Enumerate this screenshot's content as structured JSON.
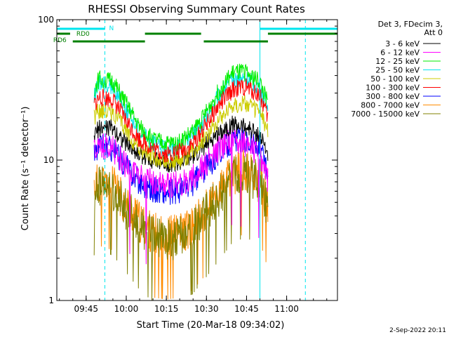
{
  "chart_data": {
    "type": "line",
    "title": "RHESSI Observing Summary Count Rates",
    "xlabel": "Start Time (20-Mar-18 09:34:02)",
    "ylabel": "Count Rate (s⁻¹ detector⁻¹)",
    "ylim": [
      1,
      100
    ],
    "y_scale": "log",
    "xlim": [
      "09:34:02",
      "11:19:00"
    ],
    "x_ticks": [
      "09:45",
      "10:00",
      "10:15",
      "10:30",
      "10:45",
      "11:00"
    ],
    "y_ticks": [
      "1",
      "10",
      "100"
    ],
    "footer_date": "2-Sep-2022 20:11",
    "legend": {
      "placement": "right",
      "header_line1": "Det 3, FDecim 3,",
      "header_line2": "Att 0"
    },
    "flags": [
      {
        "name": "N",
        "color": "#00e5ee",
        "segments": [
          [
            "09:34",
            "09:52"
          ],
          [
            "10:50",
            "11:19"
          ]
        ]
      },
      {
        "name": "RD0",
        "color": "#008000",
        "segments": [
          [
            "09:34",
            "09:39"
          ],
          [
            "10:07",
            "10:28"
          ],
          [
            "10:53",
            "11:19"
          ]
        ]
      },
      {
        "name": "RD6",
        "color": "#008000",
        "segments": [
          [
            "09:40",
            "10:07"
          ],
          [
            "10:29",
            "10:53"
          ]
        ]
      }
    ],
    "vlines": [
      {
        "time": "09:52",
        "color": "#00e5ee",
        "style": "dashed"
      },
      {
        "time": "10:50",
        "color": "#00e5ee",
        "style": "solid"
      },
      {
        "time": "11:07",
        "color": "#00e5ee",
        "style": "dashed"
      }
    ],
    "x": [
      "09:48",
      "09:50",
      "09:55",
      "10:00",
      "10:05",
      "10:10",
      "10:15",
      "10:20",
      "10:25",
      "10:30",
      "10:35",
      "10:40",
      "10:45",
      "10:50",
      "10:53"
    ],
    "series": [
      {
        "name": "3 - 6 keV",
        "color": "#000000",
        "values": [
          15,
          17,
          17,
          13,
          11,
          10,
          9.5,
          9.5,
          10.5,
          13,
          16,
          18,
          17,
          15,
          11
        ]
      },
      {
        "name": "6 - 12 keV",
        "color": "#ff00ff",
        "values": [
          12,
          13,
          12,
          9,
          7.5,
          7,
          6.5,
          6.8,
          7.5,
          9.5,
          12,
          14,
          13,
          11,
          7
        ]
      },
      {
        "name": "12 - 25 keV",
        "color": "#00ee00",
        "values": [
          32,
          38,
          36,
          25,
          17,
          14,
          13,
          13.5,
          16,
          22,
          32,
          42,
          42,
          36,
          25
        ]
      },
      {
        "name": "25 - 50 keV",
        "color": "#00e5ee",
        "values": [
          30,
          35,
          33,
          23,
          16,
          13,
          12,
          12.5,
          15,
          20,
          30,
          38,
          38,
          33,
          23
        ]
      },
      {
        "name": "50 - 100 keV",
        "color": "#cccc00",
        "values": [
          20,
          23,
          22,
          16,
          12,
          10.5,
          9.5,
          10,
          11.5,
          15,
          20,
          25,
          25,
          22,
          16
        ]
      },
      {
        "name": "100 - 300 keV",
        "color": "#ff0000",
        "values": [
          25,
          28,
          27,
          19,
          14,
          12,
          11,
          11.5,
          13,
          18,
          25,
          32,
          33,
          29,
          20
        ]
      },
      {
        "name": "300 - 800 keV",
        "color": "#0000ff",
        "values": [
          11,
          12.5,
          12,
          9,
          7,
          6.2,
          5.8,
          6,
          6.8,
          8.8,
          11.5,
          14,
          14,
          12,
          8
        ]
      },
      {
        "name": "800 - 7000 keV",
        "color": "#ff8c00",
        "values": [
          6.5,
          7,
          6.5,
          4.8,
          3.6,
          3,
          2.9,
          3,
          3.4,
          4.4,
          6,
          8,
          8.5,
          7.5,
          4.8
        ]
      },
      {
        "name": "7000 - 15000 keV",
        "color": "#808000",
        "values": [
          6,
          6.5,
          6,
          4.5,
          3.4,
          2.8,
          2.7,
          2.8,
          3.2,
          4.2,
          5.6,
          7.5,
          8,
          7,
          4.5
        ]
      }
    ]
  }
}
